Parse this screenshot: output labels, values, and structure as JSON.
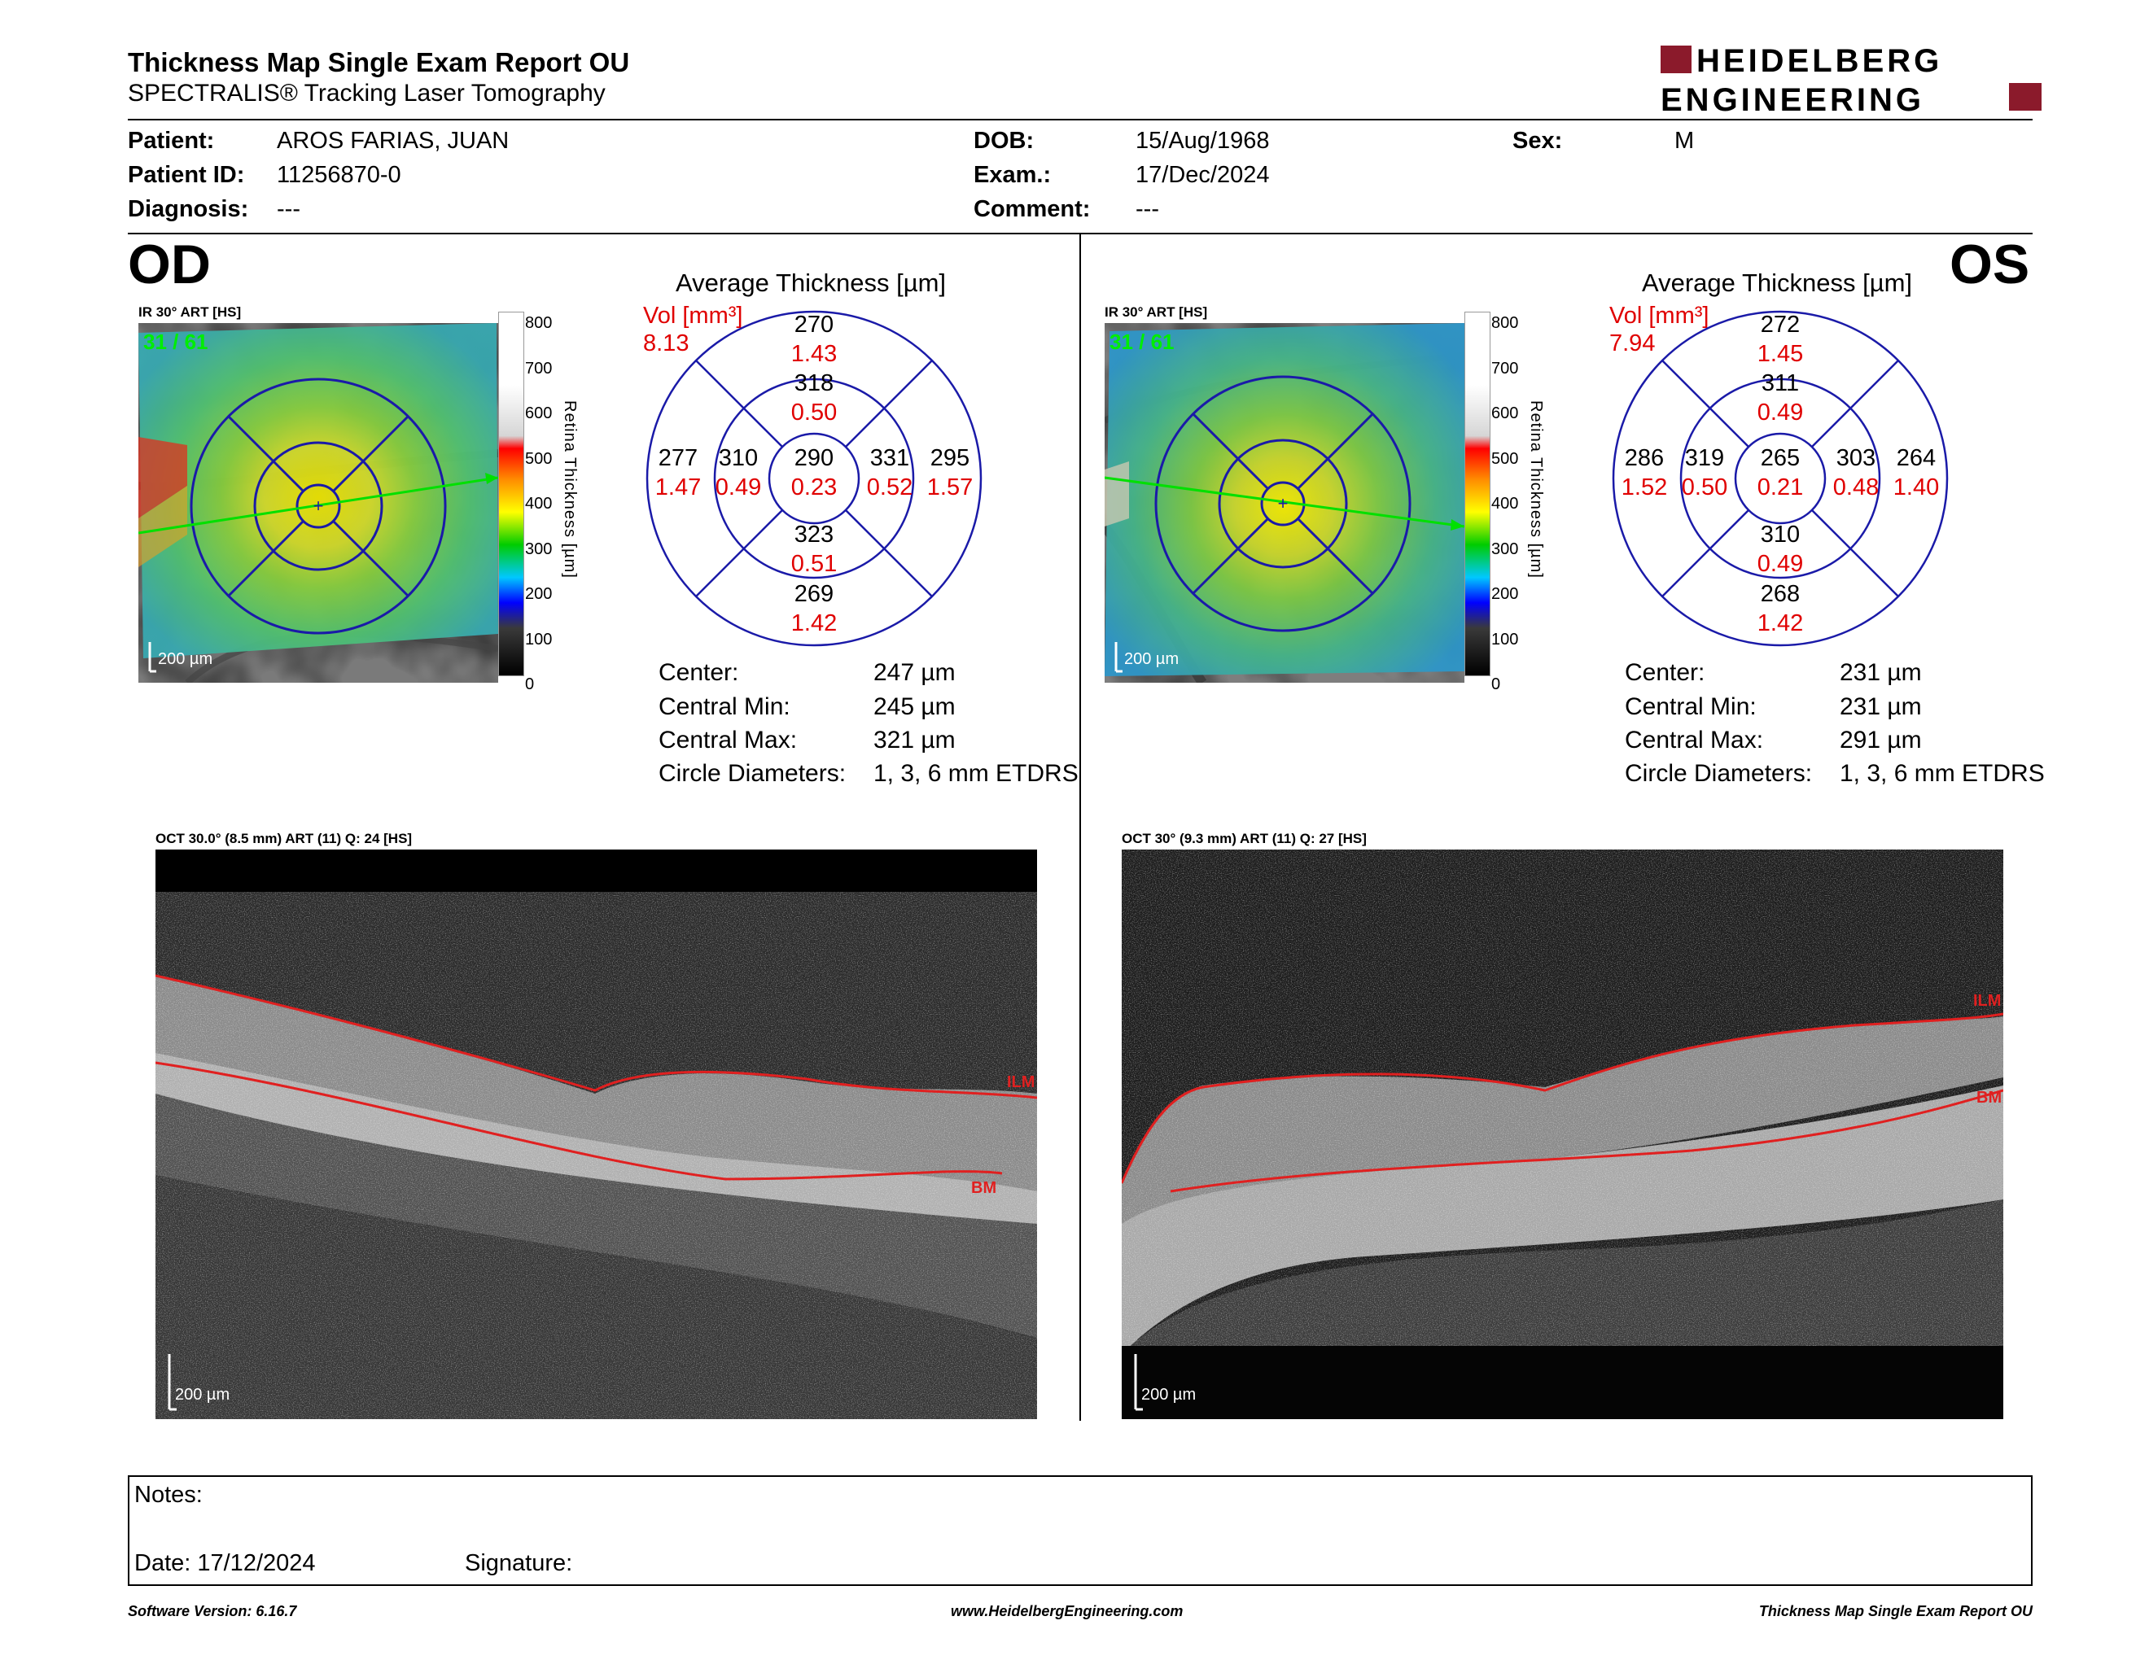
{
  "header": {
    "title": "Thickness Map Single Exam Report OU",
    "subtitle": "SPECTRALIS® Tracking Laser Tomography",
    "brand_line1": "HEIDELBERG",
    "brand_line2": "ENGINEERING",
    "brand_color": "#8b1a2b"
  },
  "patient": {
    "patient_label": "Patient:",
    "patient_value": "AROS FARIAS, JUAN",
    "id_label": "Patient ID:",
    "id_value": "11256870-0",
    "diagnosis_label": "Diagnosis:",
    "diagnosis_value": "---",
    "dob_label": "DOB:",
    "dob_value": "15/Aug/1968",
    "exam_label": "Exam.:",
    "exam_value": "17/Dec/2024",
    "comment_label": "Comment:",
    "comment_value": "---",
    "sex_label": "Sex:",
    "sex_value": "M"
  },
  "scale": {
    "ticks": [
      "800",
      "700",
      "600",
      "500",
      "400",
      "300",
      "200",
      "100",
      "0"
    ],
    "label": "Retina Thickness [µm]",
    "color_stops": [
      "#ffffff",
      "#ffffff",
      "#d8d8d8",
      "#ff0000",
      "#ff8c00",
      "#ffff00",
      "#00cc00",
      "#00c8ff",
      "#0000ff",
      "#404040",
      "#000000"
    ]
  },
  "od": {
    "eye_label": "OD",
    "ir_label": "IR 30° ART [HS]",
    "frame": "31 / 61",
    "ir_scale": "200 µm",
    "avg_title": "Average Thickness [µm]",
    "vol_label": "Vol [mm³]",
    "vol_value": "8.13",
    "sectors": {
      "outer_sup_t": "270",
      "outer_sup_v": "1.43",
      "inner_sup_t": "318",
      "inner_sup_v": "0.50",
      "outer_temp_t": "277",
      "outer_temp_v": "1.47",
      "inner_temp_t": "310",
      "inner_temp_v": "0.49",
      "center_t": "290",
      "center_v": "0.23",
      "inner_nas_t": "331",
      "inner_nas_v": "0.52",
      "outer_nas_t": "295",
      "outer_nas_v": "1.57",
      "inner_inf_t": "323",
      "inner_inf_v": "0.51",
      "outer_inf_t": "269",
      "outer_inf_v": "1.42"
    },
    "stats": {
      "center_label": "Center:",
      "center_value": "247 µm",
      "min_label": "Central Min:",
      "min_value": "245 µm",
      "max_label": "Central Max:",
      "max_value": "321 µm",
      "diam_label": "Circle Diameters:",
      "diam_value": "1, 3, 6 mm ETDRS"
    },
    "oct_label": "OCT 30.0° (8.5 mm) ART (11) Q: 24 [HS]",
    "oct_scale": "200 µm",
    "ilm": "ILM",
    "bm": "BM"
  },
  "os": {
    "eye_label": "OS",
    "ir_label": "IR 30° ART [HS]",
    "frame": "31 / 61",
    "ir_scale": "200 µm",
    "avg_title": "Average Thickness [µm]",
    "vol_label": "Vol [mm³]",
    "vol_value": "7.94",
    "sectors": {
      "outer_sup_t": "272",
      "outer_sup_v": "1.45",
      "inner_sup_t": "311",
      "inner_sup_v": "0.49",
      "outer_temp_t": "286",
      "outer_temp_v": "1.52",
      "inner_temp_t": "319",
      "inner_temp_v": "0.50",
      "center_t": "265",
      "center_v": "0.21",
      "inner_nas_t": "303",
      "inner_nas_v": "0.48",
      "outer_nas_t": "264",
      "outer_nas_v": "1.40",
      "inner_inf_t": "310",
      "inner_inf_v": "0.49",
      "outer_inf_t": "268",
      "outer_inf_v": "1.42"
    },
    "stats": {
      "center_label": "Center:",
      "center_value": "231 µm",
      "min_label": "Central Min:",
      "min_value": "231 µm",
      "max_label": "Central Max:",
      "max_value": "291 µm",
      "diam_label": "Circle Diameters:",
      "diam_value": "1, 3, 6 mm ETDRS"
    },
    "oct_label": "OCT 30° (9.3 mm) ART (11) Q: 27 [HS]",
    "oct_scale": "200 µm",
    "ilm": "ILM",
    "bm": "BM"
  },
  "notes": {
    "notes_label": "Notes:",
    "date_label": "Date: 17/12/2024",
    "signature_label": "Signature:"
  },
  "footer": {
    "left": "Software Version: 6.16.7",
    "center": "www.HeidelbergEngineering.com",
    "right": "Thickness Map Single Exam Report OU"
  },
  "colors": {
    "values_red": "#e00000",
    "grid_blue": "#1a1aa8",
    "scan_green": "#00e000"
  }
}
